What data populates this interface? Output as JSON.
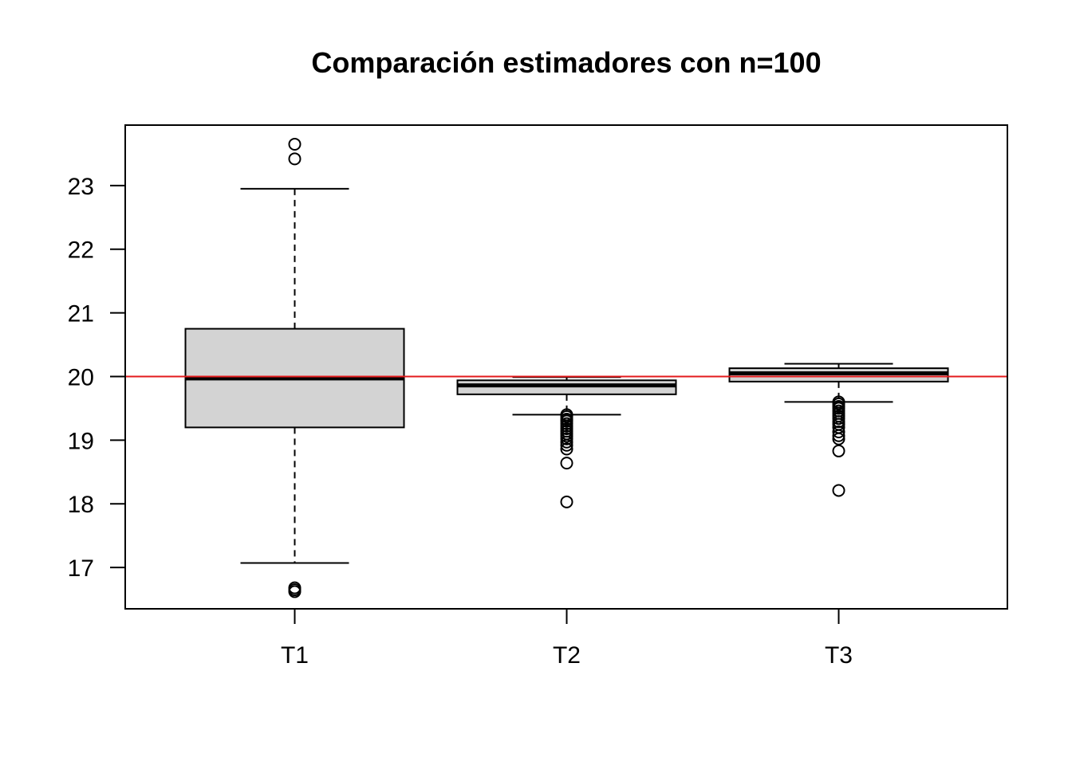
{
  "chart_data": {
    "type": "boxplot",
    "title": "Comparación estimadores con n=100",
    "xlabel": "",
    "ylabel": "",
    "ylim": [
      16.35,
      23.95
    ],
    "yticks": [
      "17",
      "18",
      "19",
      "20",
      "21",
      "22",
      "23"
    ],
    "categories": [
      "T1",
      "T2",
      "T3"
    ],
    "boxes": [
      {
        "category": "T1",
        "whisker_low": 17.07,
        "q1": 19.2,
        "median": 19.97,
        "q3": 20.75,
        "whisker_high": 22.95,
        "outliers": [
          23.65,
          23.42,
          16.68,
          16.65,
          16.62
        ]
      },
      {
        "category": "T2",
        "whisker_low": 19.4,
        "q1": 19.72,
        "median": 19.86,
        "q3": 19.94,
        "whisker_high": 19.99,
        "outliers": [
          19.4,
          19.37,
          19.33,
          19.3,
          19.26,
          19.22,
          19.18,
          19.14,
          19.1,
          19.06,
          19.02,
          18.97,
          18.92,
          18.86,
          18.64,
          18.03
        ]
      },
      {
        "category": "T3",
        "whisker_low": 19.6,
        "q1": 19.92,
        "median": 20.05,
        "q3": 20.13,
        "whisker_high": 20.2,
        "outliers": [
          19.6,
          19.57,
          19.53,
          19.5,
          19.46,
          19.42,
          19.38,
          19.34,
          19.29,
          19.25,
          19.2,
          19.13,
          19.07,
          19.02,
          18.83,
          18.21
        ]
      }
    ],
    "reference_line": {
      "y": 20,
      "color": "#e31a1c"
    },
    "box_fill": "#d3d3d3",
    "line_color": "#000000"
  }
}
